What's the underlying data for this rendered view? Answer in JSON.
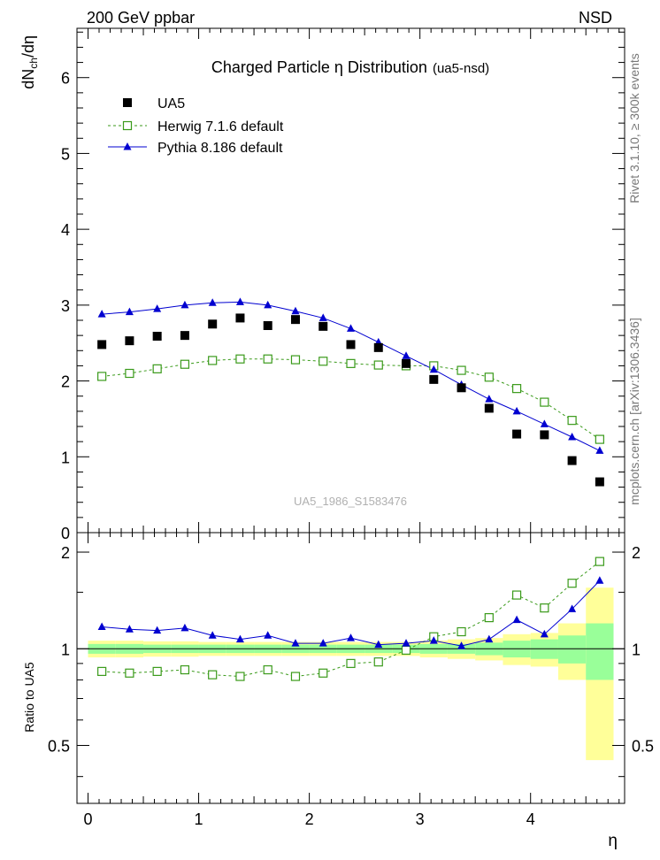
{
  "header": {
    "left": "200 GeV ppbar",
    "right": "NSD"
  },
  "side_labels": {
    "top": "Rivet 3.1.10, ≥ 300k events",
    "bottom": "mcplots.cern.ch [arXiv:1306.3436]"
  },
  "chart_data": [
    {
      "type": "scatter",
      "panel": "main",
      "title": "Charged Particle  η Distribution",
      "subtitle": "(ua5-nsd)",
      "watermark": "UA5_1986_S1583476",
      "ylabel": "dN_ch/dη",
      "xlabel": "η",
      "xlim": [
        -0.1,
        4.85
      ],
      "ylim": [
        0,
        6.65
      ],
      "xticks": [
        0,
        1,
        2,
        3,
        4
      ],
      "yticks": [
        0,
        1,
        2,
        3,
        4,
        5,
        6
      ],
      "legend_position": "top-left",
      "x": [
        0.125,
        0.375,
        0.625,
        0.875,
        1.125,
        1.375,
        1.625,
        1.875,
        2.125,
        2.375,
        2.625,
        2.875,
        3.125,
        3.375,
        3.625,
        3.875,
        4.125,
        4.375,
        4.625
      ],
      "series": [
        {
          "name": "UA5",
          "style": "data",
          "color": "#000000",
          "values": [
            2.48,
            2.53,
            2.59,
            2.6,
            2.75,
            2.83,
            2.73,
            2.81,
            2.72,
            2.48,
            2.44,
            2.23,
            2.02,
            1.91,
            1.64,
            1.3,
            1.29,
            0.95,
            0.67
          ]
        },
        {
          "name": "Herwig 7.1.6 default",
          "style": "dashed-open-square",
          "color": "#3a9a1a",
          "values": [
            2.06,
            2.1,
            2.16,
            2.22,
            2.27,
            2.29,
            2.29,
            2.28,
            2.26,
            2.23,
            2.21,
            2.2,
            2.2,
            2.14,
            2.05,
            1.9,
            1.72,
            1.48,
            1.23
          ]
        },
        {
          "name": "Pythia 8.186 default",
          "style": "solid-triangle",
          "color": "#0000d0",
          "values": [
            2.88,
            2.91,
            2.95,
            3.0,
            3.03,
            3.04,
            3.0,
            2.92,
            2.83,
            2.69,
            2.51,
            2.33,
            2.15,
            1.95,
            1.76,
            1.6,
            1.43,
            1.26,
            1.08
          ]
        }
      ]
    },
    {
      "type": "scatter",
      "panel": "ratio",
      "ylabel": "Ratio to UA5",
      "xlabel": "η",
      "xlim": [
        -0.1,
        4.85
      ],
      "ylim": [
        0.33,
        2.3
      ],
      "xticks": [
        0,
        1,
        2,
        3,
        4
      ],
      "yticks": [
        0.5,
        1,
        2
      ],
      "ytick_labels": [
        "0.5",
        "1",
        "2"
      ],
      "x": [
        0.125,
        0.375,
        0.625,
        0.875,
        1.125,
        1.375,
        1.625,
        1.875,
        2.125,
        2.375,
        2.625,
        2.875,
        3.125,
        3.375,
        3.625,
        3.875,
        4.125,
        4.375,
        4.625
      ],
      "bin_edges": [
        0,
        0.25,
        0.5,
        0.75,
        1.0,
        1.25,
        1.5,
        1.75,
        2.0,
        2.25,
        2.5,
        2.75,
        3.0,
        3.25,
        3.5,
        3.75,
        4.0,
        4.25,
        4.5,
        4.75
      ],
      "band_stat": [
        0.035,
        0.035,
        0.03,
        0.03,
        0.03,
        0.03,
        0.03,
        0.03,
        0.03,
        0.03,
        0.03,
        0.03,
        0.035,
        0.035,
        0.045,
        0.06,
        0.07,
        0.1,
        0.2
      ],
      "band_total": [
        0.06,
        0.06,
        0.055,
        0.055,
        0.05,
        0.05,
        0.05,
        0.05,
        0.05,
        0.05,
        0.05,
        0.05,
        0.06,
        0.07,
        0.08,
        0.11,
        0.12,
        0.2,
        0.55
      ],
      "series": [
        {
          "name": "Herwig 7.1.6 default",
          "color": "#3a9a1a",
          "values": [
            0.85,
            0.84,
            0.85,
            0.86,
            0.83,
            0.82,
            0.86,
            0.82,
            0.84,
            0.9,
            0.91,
            0.99,
            1.09,
            1.13,
            1.25,
            1.47,
            1.34,
            1.6,
            1.87
          ]
        },
        {
          "name": "Pythia 8.186 default",
          "color": "#0000d0",
          "values": [
            1.17,
            1.15,
            1.14,
            1.16,
            1.1,
            1.07,
            1.1,
            1.04,
            1.04,
            1.08,
            1.03,
            1.04,
            1.06,
            1.02,
            1.07,
            1.23,
            1.11,
            1.33,
            1.63
          ]
        }
      ]
    }
  ]
}
